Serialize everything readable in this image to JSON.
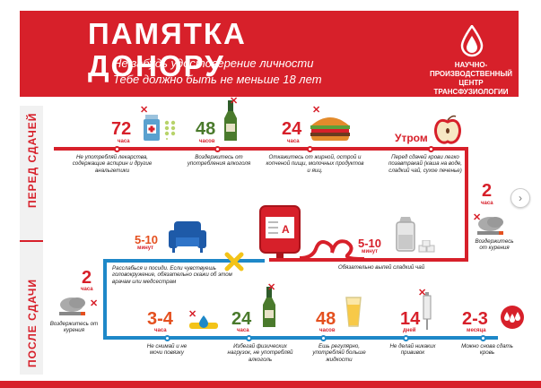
{
  "header": {
    "title": "ПАМЯТКА ДОНОРУ",
    "line1": "Не забудь удостоверение личности",
    "line2": "Тебе должно быть не меньше 18 лет",
    "org_line1": "НАУЧНО-",
    "org_line2": "ПРОИЗВОДСТВЕННЫЙ",
    "org_line3": "ЦЕНТР ТРАНСФУЗИОЛОГИИ"
  },
  "side": {
    "before": "ПЕРЕД СДАЧЕЙ",
    "after": "ПОСЛЕ СДАЧИ"
  },
  "before": [
    {
      "num": "72",
      "unit": "часа",
      "caption": "Не употребляй лекарства, содержащие аспирин и другие анальгетики"
    },
    {
      "num": "48",
      "unit": "часов",
      "caption": "Воздержитесь от употребления алкоголя"
    },
    {
      "num": "24",
      "unit": "часа",
      "caption": "Откажитесь от жирной, острой и копченой пищи, молочных продуктов и яиц."
    },
    {
      "num": "Утром",
      "unit": "",
      "caption": "Перед сдачей крови легко позавтракай (каша на воде, сладкий чай, сухое печенье)"
    },
    {
      "num": "2",
      "unit": "часа",
      "caption": "Воздержитесь от курения"
    }
  ],
  "middle": {
    "rest_num": "5-10",
    "rest_unit": "минут",
    "rest_caption": "Расслабься и посиди. Если чувствуешь головокружение, обязательно скажи об этом врачам или медсестрам",
    "tea_num": "5-10",
    "tea_unit": "минут",
    "tea_caption": "Обязательно выпей сладкий чай",
    "bag_label": "А"
  },
  "after": [
    {
      "num": "2",
      "unit": "часа",
      "caption": "Воздержитесь от курения"
    },
    {
      "num": "3-4",
      "unit": "часа",
      "caption": "Не снимай и не мочи повязку"
    },
    {
      "num": "24",
      "unit": "часа",
      "caption": "Избегай физических нагрузок, не употребляй алкоголь"
    },
    {
      "num": "48",
      "unit": "часов",
      "caption": "Ешь регулярно, употребляй больше жидкости"
    },
    {
      "num": "14",
      "unit": "дней",
      "caption": "Не делай никаких прививок"
    },
    {
      "num": "2-3",
      "unit": "месяца",
      "caption": "Можно снова сдать кровь"
    }
  ],
  "pager_icon": "chevron-right-icon",
  "colors": {
    "red": "#d7202a",
    "blue": "#1e88c8",
    "green": "#4a7a2c"
  }
}
